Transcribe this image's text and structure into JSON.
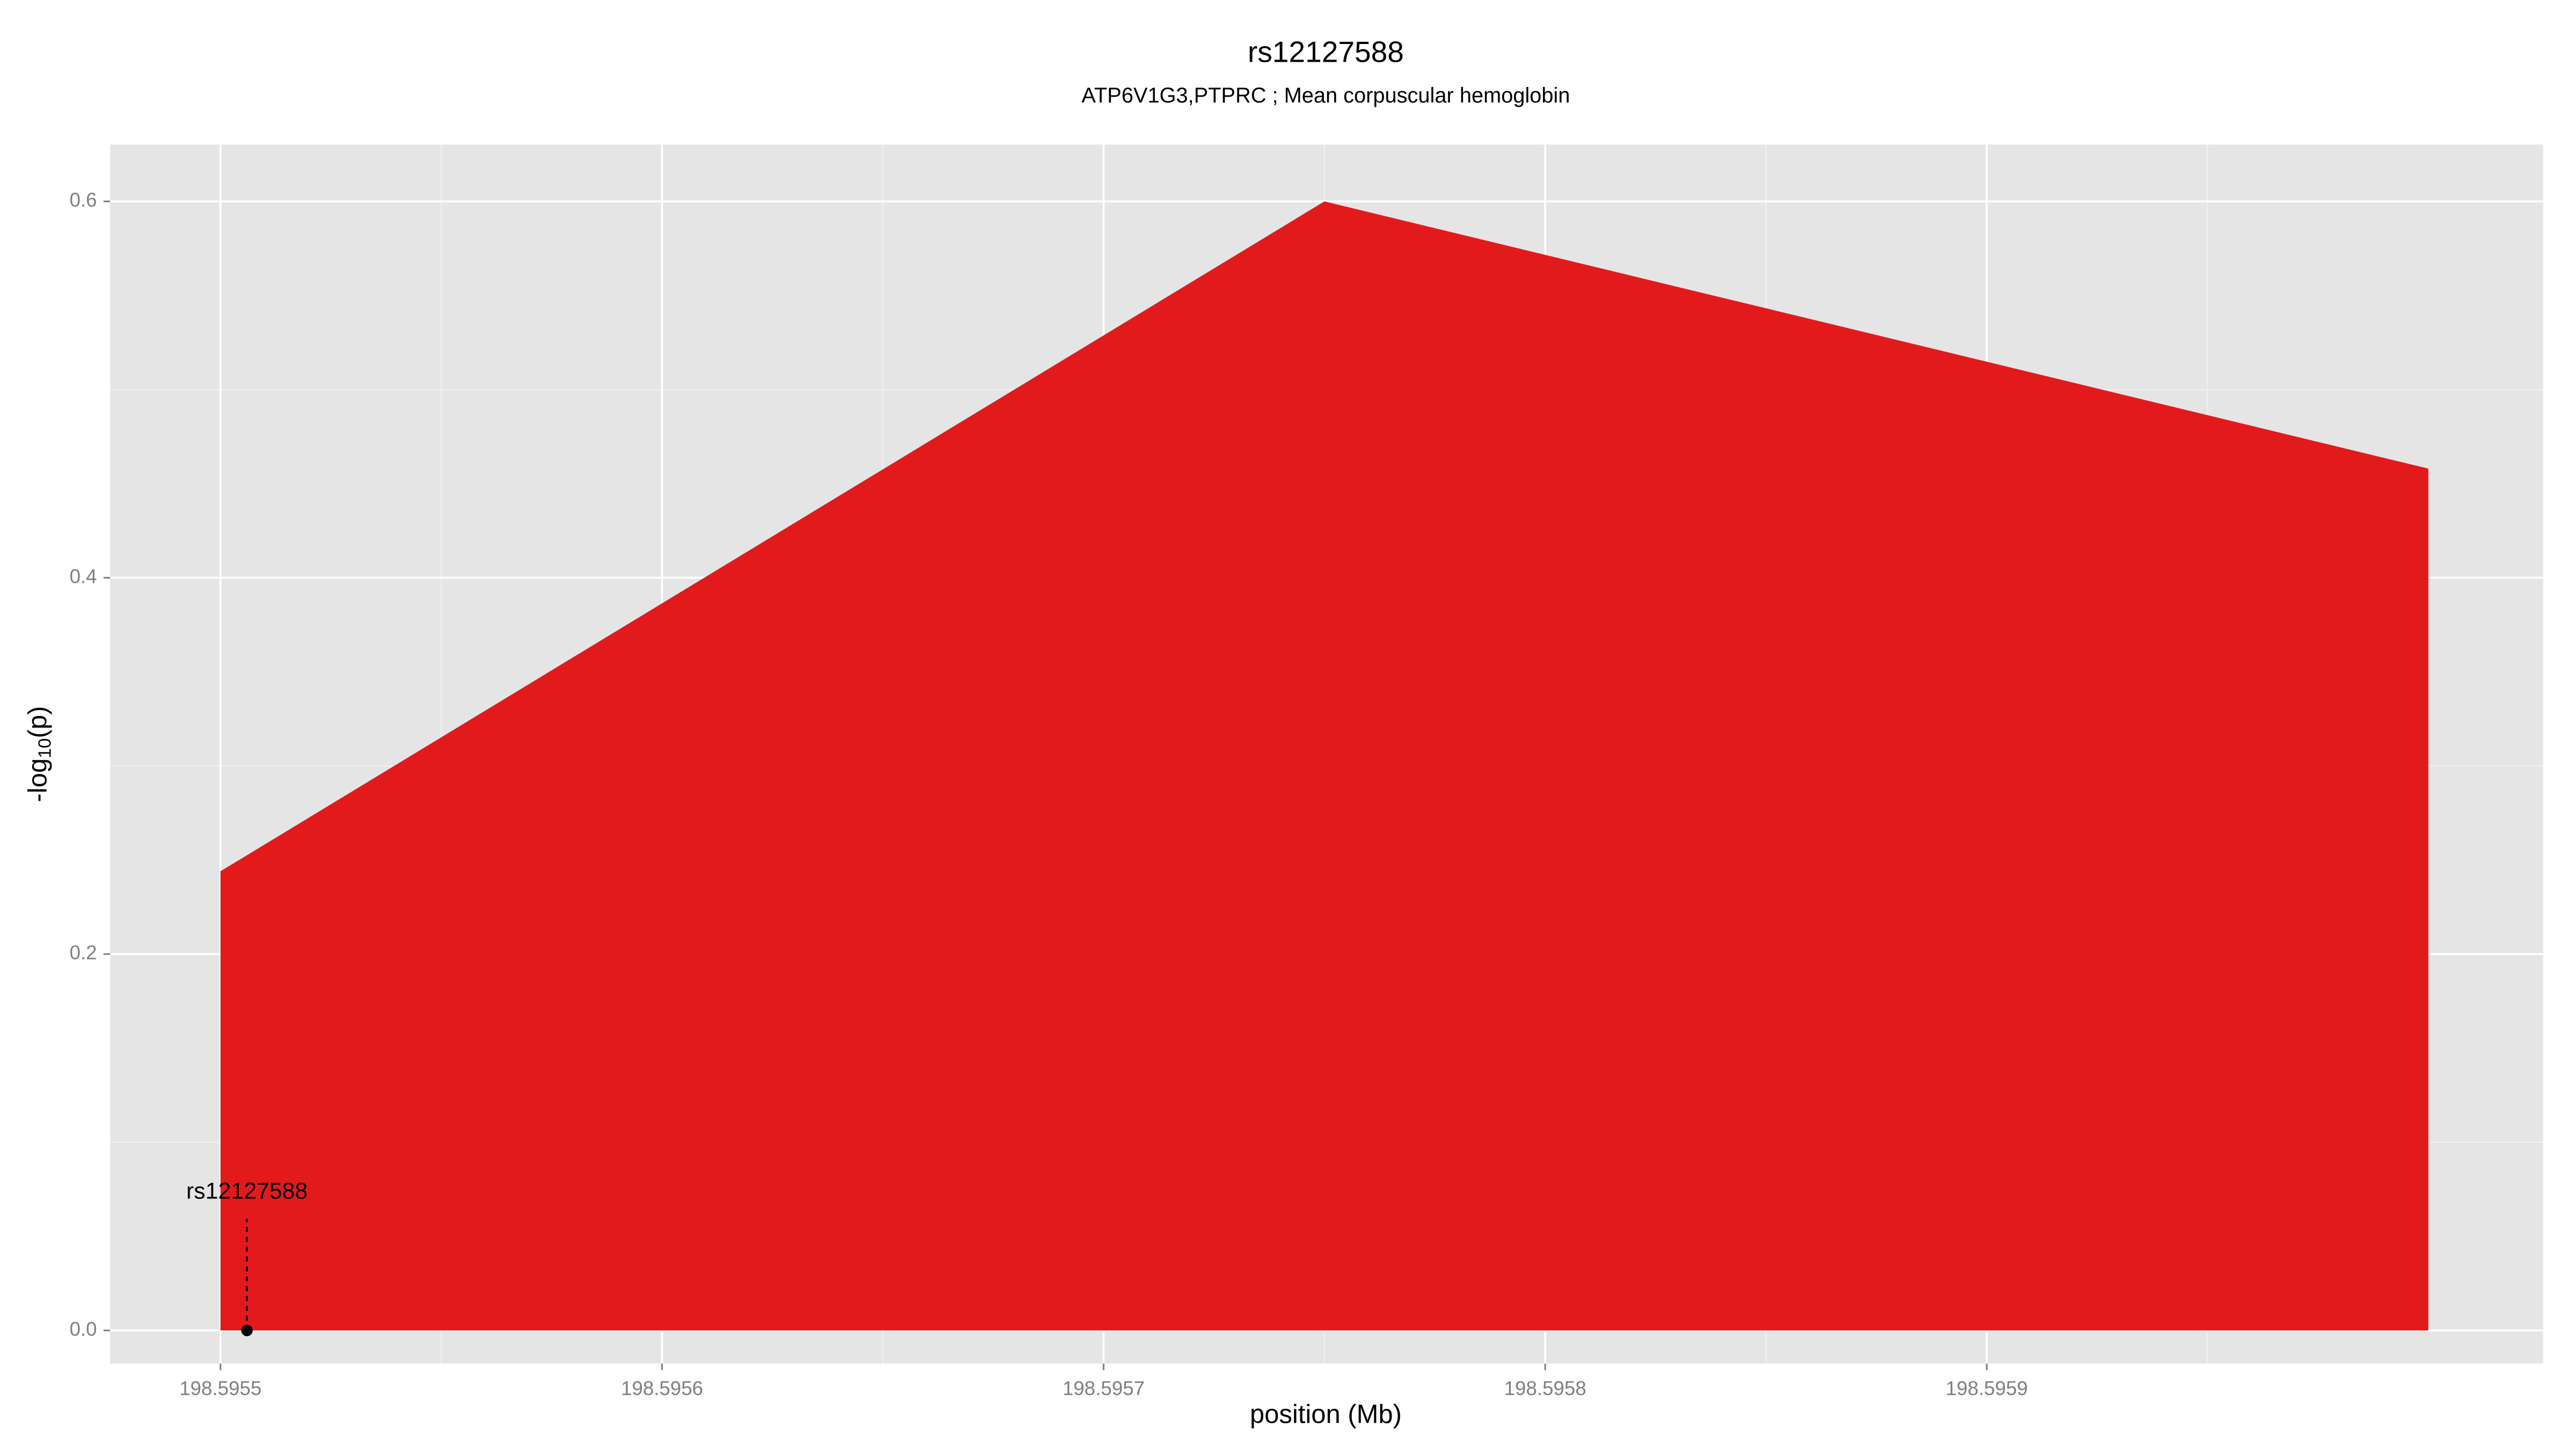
{
  "chart_data": {
    "type": "area",
    "title": "rs12127588",
    "subtitle": "ATP6V1G3,PTPRC ; Mean corpuscular hemoglobin",
    "x_label": "position (Mb)",
    "y_label": {
      "prefix": "-log",
      "sub": "10",
      "suffix": "(p)"
    },
    "x": [
      198.5955,
      198.59575,
      198.596
    ],
    "series": [
      {
        "color": "#e31a1c",
        "values": [
          0.244,
          0.6,
          0.458
        ]
      }
    ],
    "xlim": [
      198.595475,
      198.596026
    ],
    "ylim": [
      -0.0176,
      0.6302
    ],
    "xticks": [
      198.5955,
      198.5956,
      198.5957,
      198.5958,
      198.5959
    ],
    "yticks": [
      {
        "value": 0,
        "label": "0.0"
      },
      0.2,
      0.4,
      0.6
    ],
    "grid": true,
    "annotation": {
      "label": "rs12127588",
      "x": 198.595506,
      "y": 0
    }
  }
}
